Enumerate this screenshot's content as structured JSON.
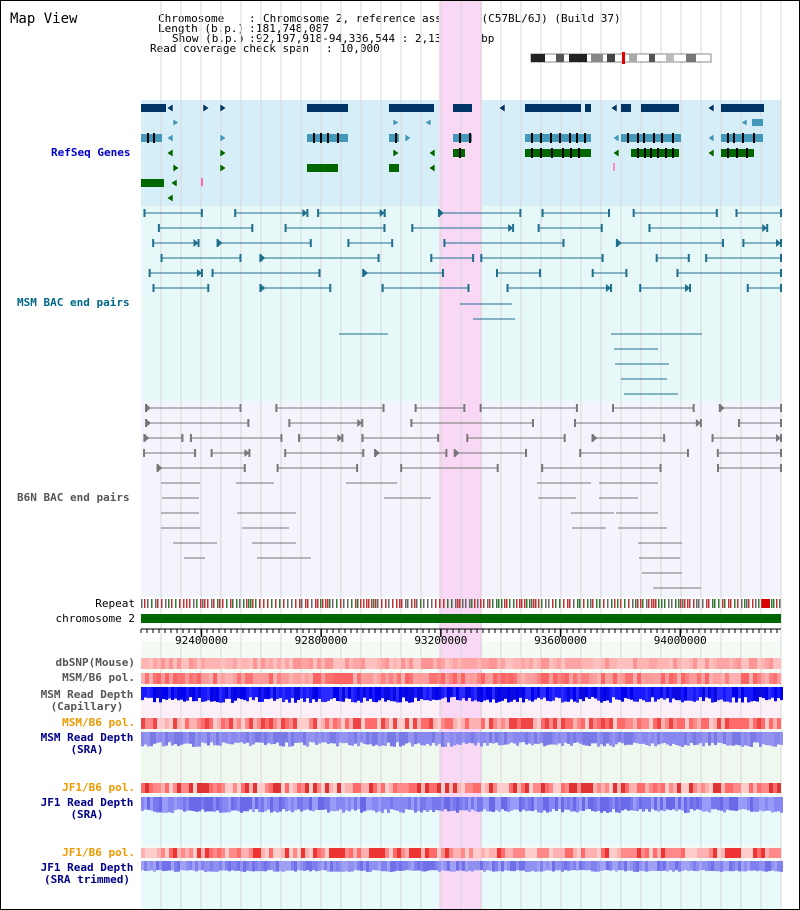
{
  "header": {
    "title": "Map View",
    "chromosome_key": "Chromosome",
    "chromosome_val": "Chromosome 2, reference assembly (C57BL/6J) (Build 37)",
    "length_key": "Length (b.p.)",
    "length_val": "181,748,087",
    "show_key": "Show (b.p.)",
    "show_val": "92,197,918-94,336,544 : 2,138,627 bp",
    "coverage_key": "Read coverage check span",
    "coverage_val": "10,000"
  },
  "tracks": {
    "refseq": "RefSeq Genes",
    "msm_bac": "MSM BAC end pairs",
    "b6n_bac": "B6N BAC end pairs",
    "repeat": "Repeat",
    "chromosome": "chromosome 2",
    "dbsnp": "dbSNP(Mouse)",
    "msm_b6_pol": "MSM/B6 pol.",
    "msm_read_depth_cap_1": "MSM Read Depth",
    "msm_read_depth_cap_2": "(Capillary)",
    "msm_b6_pol_2": "MSM/B6 pol.",
    "msm_read_depth_sra_1": "MSM Read Depth",
    "msm_read_depth_sra_2": "(SRA)",
    "jf1_b6_pol": "JF1/B6 pol.",
    "jf1_read_depth_1": "JF1 Read Depth",
    "jf1_read_depth_2": "(SRA)",
    "jf1_b6_pol_2": "JF1/B6 pol.",
    "jf1_trim_1": "JF1 Read Depth",
    "jf1_trim_2": "(SRA trimmed)"
  },
  "axis": {
    "ticks": [
      {
        "label": "92400000",
        "value": 92400000
      },
      {
        "label": "92800000",
        "value": 92800000
      },
      {
        "label": "93200000",
        "value": 93200000
      },
      {
        "label": "93600000",
        "value": 93600000
      },
      {
        "label": "94000000",
        "value": 94000000
      }
    ],
    "start": 92197918,
    "end": 94336544
  },
  "colors": {
    "highlight": "#f8d8f4",
    "refseq_bg": "#d6eef8",
    "msm_bg": "#e6f8f8",
    "b6n_bg": "#f4f4fc",
    "gene_dark": "#003366",
    "gene_mid": "#4499bb",
    "gene_green": "#006600",
    "msm_line": "#1f6e8e",
    "b6n_line": "#777777",
    "chromosome": "#006600"
  }
}
